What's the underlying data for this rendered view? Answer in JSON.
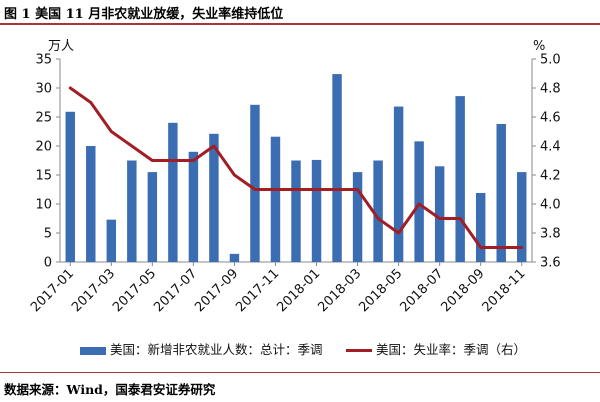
{
  "title": "图 1  美国 11 月非农就业放缓，失业率维持低位",
  "source": "数据来源：Wind，国泰君安证券研究",
  "colors": {
    "bar": "#3b6db3",
    "line": "#a01e24",
    "rule": "#a8343c"
  },
  "chart_data": {
    "type": "bar+line",
    "left_unit": "万人",
    "right_unit": "%",
    "left_axis": {
      "min": 0,
      "max": 35,
      "ticks": [
        0,
        5,
        10,
        15,
        20,
        25,
        30,
        35
      ]
    },
    "right_axis": {
      "min": 3.6,
      "max": 5.0,
      "ticks": [
        "3.6",
        "3.8",
        "4.0",
        "4.2",
        "4.4",
        "4.6",
        "4.8",
        "5.0"
      ]
    },
    "x_labels": [
      {
        "index": 0,
        "label": "2017-01"
      },
      {
        "index": 2,
        "label": "2017-03"
      },
      {
        "index": 4,
        "label": "2017-05"
      },
      {
        "index": 6,
        "label": "2017-07"
      },
      {
        "index": 8,
        "label": "2017-09"
      },
      {
        "index": 10,
        "label": "2017-11"
      },
      {
        "index": 12,
        "label": "2018-01"
      },
      {
        "index": 14,
        "label": "2018-03"
      },
      {
        "index": 16,
        "label": "2018-05"
      },
      {
        "index": 18,
        "label": "2018-07"
      },
      {
        "index": 20,
        "label": "2018-09"
      },
      {
        "index": 22,
        "label": "2018-11"
      }
    ],
    "months": [
      "2017-01",
      "2017-02",
      "2017-03",
      "2017-04",
      "2017-05",
      "2017-06",
      "2017-07",
      "2017-08",
      "2017-09",
      "2017-10",
      "2017-11",
      "2017-12",
      "2018-01",
      "2018-02",
      "2018-03",
      "2018-04",
      "2018-05",
      "2018-06",
      "2018-07",
      "2018-08",
      "2018-09",
      "2018-10",
      "2018-11"
    ],
    "series": [
      {
        "name": "美国：新增非农就业人数：总计：季调",
        "type": "bar",
        "axis": "left",
        "values": [
          25.9,
          20,
          7.3,
          17.5,
          15.5,
          24,
          19,
          22.1,
          1.4,
          27.1,
          21.6,
          17.5,
          17.6,
          32.4,
          15.5,
          17.5,
          26.8,
          20.8,
          16.5,
          28.6,
          11.9,
          23.8,
          15.5
        ]
      },
      {
        "name": "美国：失业率：季调（右）",
        "type": "line",
        "axis": "right",
        "values": [
          4.8,
          4.7,
          4.5,
          4.4,
          4.3,
          4.3,
          4.3,
          4.4,
          4.2,
          4.1,
          4.1,
          4.1,
          4.1,
          4.1,
          4.1,
          3.9,
          3.8,
          4.0,
          3.9,
          3.9,
          3.7,
          3.7,
          3.7
        ]
      }
    ]
  }
}
